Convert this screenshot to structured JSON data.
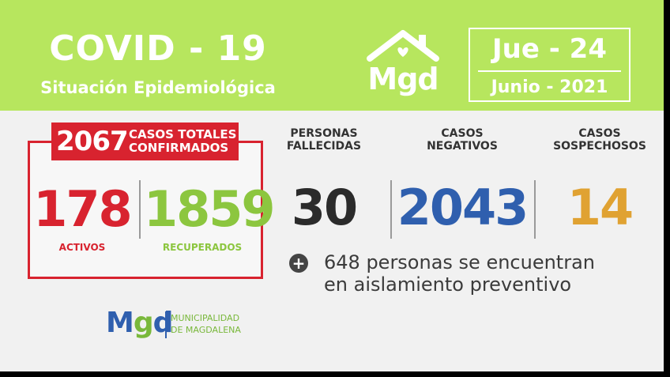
{
  "header": {
    "title": "COVID - 19",
    "subtitle": "Situación Epidemiológica",
    "logo_text": "Mgd",
    "date_day": "Jue - 24",
    "date_month": "Junio - 2021"
  },
  "confirmed": {
    "total": "2067",
    "label_line1": "CASOS TOTALES",
    "label_line2": "CONFIRMADOS",
    "active_value": "178",
    "active_label": "ACTIVOS",
    "recovered_value": "1859",
    "recovered_label": "RECUPERADOS"
  },
  "stats": {
    "deceased": {
      "label_line1": "PERSONAS",
      "label_line2": "FALLECIDAS",
      "value": "30"
    },
    "negative": {
      "label_line1": "CASOS",
      "label_line2": "NEGATIVOS",
      "value": "2043"
    },
    "suspected": {
      "label_line1": "CASOS",
      "label_line2": "SOSPECHOSOS",
      "value": "14"
    }
  },
  "isolation_note": {
    "line1": "648 personas se encuentran",
    "line2": "en aislamiento preventivo"
  },
  "footer_logo": {
    "mgd_m": "M",
    "mgd_g": "g",
    "mgd_d": "d",
    "line1": "MUNICIPALIDAD",
    "line2": "DE MAGDALENA"
  },
  "icons": {
    "house": "house-heart-icon",
    "plus": "plus-circle-icon"
  },
  "colors": {
    "header_green": "#b7e65e",
    "confirmed_red": "#d8232f",
    "active_red": "#d8232f",
    "recovered_green": "#8cc63f",
    "deceased_dark": "#2b2b2b",
    "negative_blue": "#2f5fae",
    "suspected_orange": "#e0a232"
  }
}
